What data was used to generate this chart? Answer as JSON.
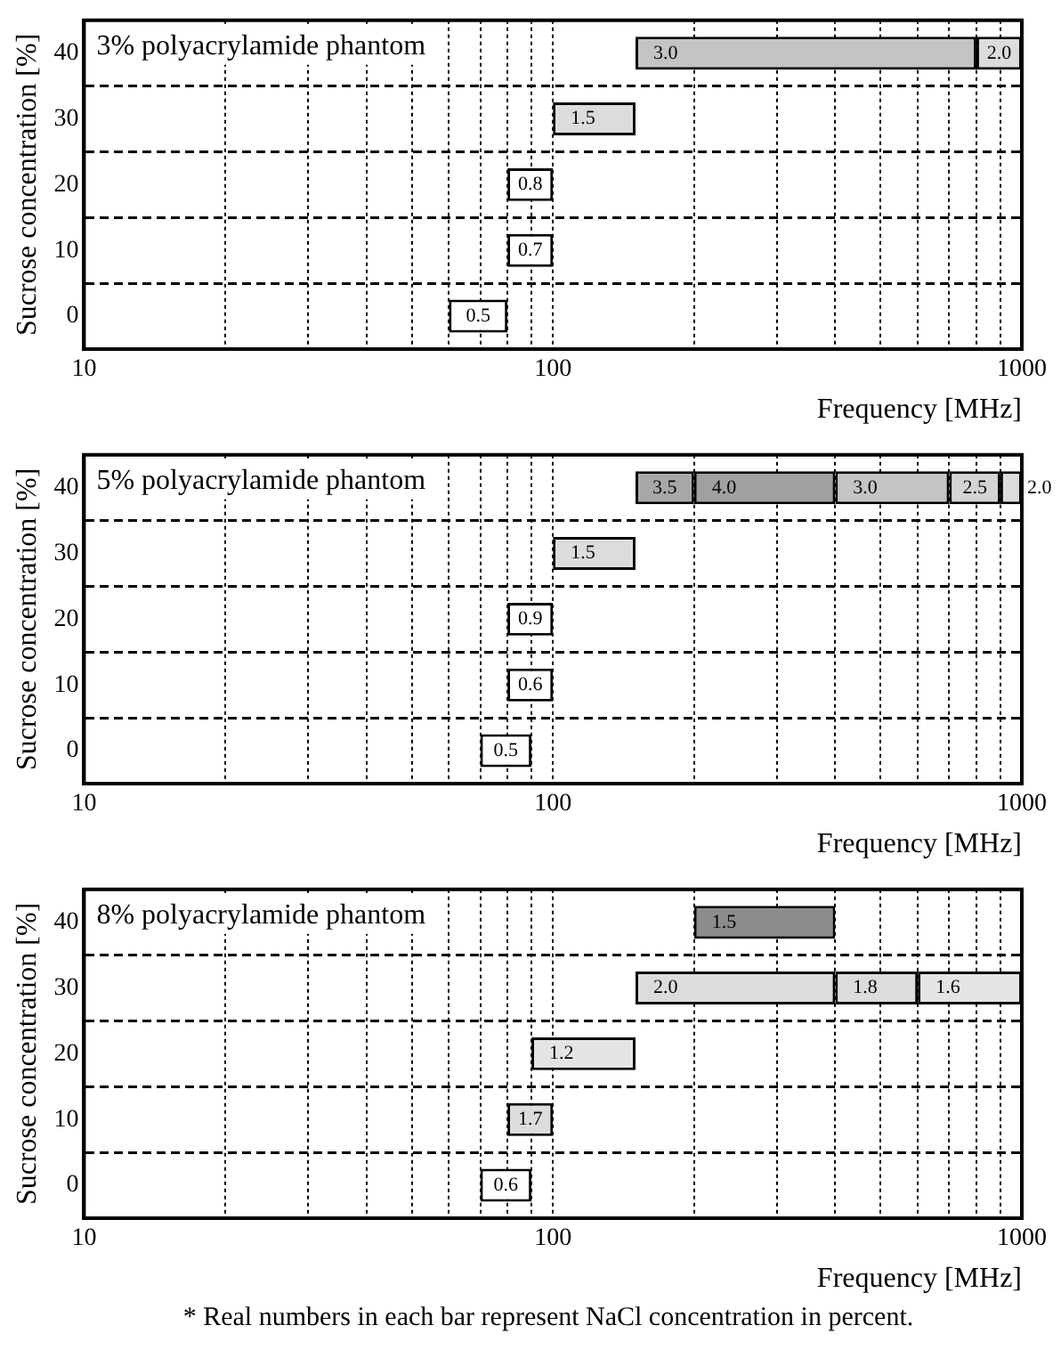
{
  "chart_data": [
    {
      "type": "bar",
      "orientation": "horizontal",
      "title": "3% polyacrylamide phantom",
      "xlabel": "Frequency [MHz]",
      "ylabel": "Sucrose concentration [%]",
      "log": "x",
      "grid": true,
      "categories": [
        "40",
        "30",
        "20",
        "10",
        "0"
      ],
      "xlim": [
        10,
        1000
      ],
      "xticks": [
        10,
        {
          "value": 20,
          "label": null
        },
        {
          "value": 30,
          "label": null
        },
        {
          "value": 40,
          "label": null
        },
        {
          "value": 50,
          "label": null
        },
        {
          "value": 60,
          "label": null
        },
        {
          "value": 70,
          "label": null
        },
        {
          "value": 80,
          "label": null
        },
        {
          "value": 90,
          "label": null
        },
        100,
        {
          "value": 200,
          "label": null
        },
        {
          "value": 300,
          "label": null
        },
        {
          "value": 400,
          "label": null
        },
        {
          "value": 500,
          "label": null
        },
        {
          "value": 600,
          "label": null
        },
        {
          "value": 700,
          "label": null
        },
        {
          "value": 800,
          "label": null
        },
        {
          "value": 900,
          "label": null
        },
        1000
      ],
      "annotations": [
        {
          "text": "3.0",
          "x": 150,
          "y": "40"
        },
        {
          "text": "2.0",
          "x": 800,
          "y": "40"
        },
        {
          "text": "1.5",
          "x": 100,
          "y": "30"
        },
        {
          "text": "0.8",
          "x": 80,
          "y": "20"
        },
        {
          "text": "0.7",
          "x": 80,
          "y": "10"
        },
        {
          "text": "0.5",
          "x": 60,
          "y": "0"
        }
      ],
      "series": [
        {
          "base": [
            150,
            100,
            80,
            80,
            60
          ],
          "values": [
            650,
            50,
            20,
            20,
            20
          ],
          "colors": [
            "#c4c4c4",
            "#dcdcdc",
            "#ffffff",
            "#ffffff",
            "#ffffff"
          ]
        },
        {
          "base": [
            800,
            null,
            null,
            null,
            null
          ],
          "values": [
            200,
            null,
            null,
            null,
            null
          ],
          "colors": [
            "#dcdcdc",
            null,
            null,
            null,
            null
          ]
        }
      ]
    },
    {
      "type": "bar",
      "orientation": "horizontal",
      "title": "5% polyacrylamide phantom",
      "xlabel": "Frequency [MHz]",
      "ylabel": "Sucrose concentration [%]",
      "log": "x",
      "grid": true,
      "categories": [
        "40",
        "30",
        "20",
        "10",
        "0"
      ],
      "xlim": [
        10,
        1000
      ],
      "xticks": [
        10,
        {
          "value": 20,
          "label": null
        },
        {
          "value": 30,
          "label": null
        },
        {
          "value": 40,
          "label": null
        },
        {
          "value": 50,
          "label": null
        },
        {
          "value": 60,
          "label": null
        },
        {
          "value": 70,
          "label": null
        },
        {
          "value": 80,
          "label": null
        },
        {
          "value": 90,
          "label": null
        },
        100,
        {
          "value": 200,
          "label": null
        },
        {
          "value": 300,
          "label": null
        },
        {
          "value": 400,
          "label": null
        },
        {
          "value": 500,
          "label": null
        },
        {
          "value": 600,
          "label": null
        },
        {
          "value": 700,
          "label": null
        },
        {
          "value": 800,
          "label": null
        },
        {
          "value": 900,
          "label": null
        },
        1000
      ],
      "annotations": [
        {
          "text": "3.5",
          "x": 150,
          "y": "40"
        },
        {
          "text": "4.0",
          "x": 200,
          "y": "40"
        },
        {
          "text": "3.0",
          "x": 400,
          "y": "40"
        },
        {
          "text": "2.5",
          "x": 700,
          "y": "40"
        },
        {
          "text": "2.0",
          "x": 900,
          "y": "40"
        },
        {
          "text": "1.5",
          "x": 100,
          "y": "30"
        },
        {
          "text": "0.9",
          "x": 80,
          "y": "20"
        },
        {
          "text": "0.6",
          "x": 80,
          "y": "10"
        },
        {
          "text": "0.5",
          "x": 70,
          "y": "0"
        }
      ],
      "series": [
        {
          "base": [
            150,
            100,
            80,
            80,
            70
          ],
          "values": [
            50,
            50,
            20,
            20,
            20
          ],
          "colors": [
            "#a8a8a8",
            "#dcdcdc",
            "#ffffff",
            "#ffffff",
            "#ffffff"
          ]
        },
        {
          "base": [
            200,
            null,
            null,
            null,
            null
          ],
          "values": [
            200,
            null,
            null,
            null,
            null
          ],
          "colors": [
            "#a0a0a0",
            null,
            null,
            null,
            null
          ]
        },
        {
          "base": [
            400,
            null,
            null,
            null,
            null
          ],
          "values": [
            300,
            null,
            null,
            null,
            null
          ],
          "colors": [
            "#c4c4c4",
            null,
            null,
            null,
            null
          ]
        },
        {
          "base": [
            700,
            null,
            null,
            null,
            null
          ],
          "values": [
            200,
            null,
            null,
            null,
            null
          ],
          "colors": [
            "#d4d4d4",
            null,
            null,
            null,
            null
          ]
        },
        {
          "base": [
            900,
            null,
            null,
            null,
            null
          ],
          "values": [
            100,
            null,
            null,
            null,
            null
          ],
          "colors": [
            "#dcdcdc",
            null,
            null,
            null,
            null
          ]
        }
      ]
    },
    {
      "type": "bar",
      "orientation": "horizontal",
      "title": "8% polyacrylamide phantom",
      "xlabel": "Frequency [MHz]",
      "ylabel": "Sucrose concentration [%]",
      "log": "x",
      "grid": true,
      "categories": [
        "40",
        "30",
        "20",
        "10",
        "0"
      ],
      "xlim": [
        10,
        1000
      ],
      "xticks": [
        10,
        {
          "value": 20,
          "label": null
        },
        {
          "value": 30,
          "label": null
        },
        {
          "value": 40,
          "label": null
        },
        {
          "value": 50,
          "label": null
        },
        {
          "value": 60,
          "label": null
        },
        {
          "value": 70,
          "label": null
        },
        {
          "value": 80,
          "label": null
        },
        {
          "value": 90,
          "label": null
        },
        100,
        {
          "value": 200,
          "label": null
        },
        {
          "value": 300,
          "label": null
        },
        {
          "value": 400,
          "label": null
        },
        {
          "value": 500,
          "label": null
        },
        {
          "value": 600,
          "label": null
        },
        {
          "value": 700,
          "label": null
        },
        {
          "value": 800,
          "label": null
        },
        {
          "value": 900,
          "label": null
        },
        1000
      ],
      "annotations": [
        {
          "text": "1.5",
          "x": 200,
          "y": "40"
        },
        {
          "text": "2.0",
          "x": 150,
          "y": "30"
        },
        {
          "text": "1.8",
          "x": 400,
          "y": "30"
        },
        {
          "text": "1.6",
          "x": 600,
          "y": "30"
        },
        {
          "text": "1.2",
          "x": 90,
          "y": "20"
        },
        {
          "text": "1.7",
          "x": 80,
          "y": "10"
        },
        {
          "text": "0.6",
          "x": 70,
          "y": "0"
        },
        "* Real numbers in each bar represent NaCl concentration in percent."
      ],
      "series": [
        {
          "base": [
            200,
            150,
            90,
            80,
            70
          ],
          "values": [
            200,
            250,
            60,
            20,
            20
          ],
          "colors": [
            "#8c8c8c",
            "#dcdcdc",
            "#e4e4e4",
            "#dcdcdc",
            "#ffffff"
          ]
        },
        {
          "base": [
            null,
            400,
            null,
            null,
            null
          ],
          "values": [
            null,
            200,
            null,
            null,
            null
          ],
          "colors": [
            null,
            "#dcdcdc",
            null,
            null,
            null
          ]
        },
        {
          "base": [
            null,
            600,
            null,
            null,
            null
          ],
          "values": [
            null,
            400,
            null,
            null,
            null
          ],
          "colors": [
            null,
            "#e4e4e4",
            null,
            null,
            null
          ]
        }
      ]
    }
  ]
}
